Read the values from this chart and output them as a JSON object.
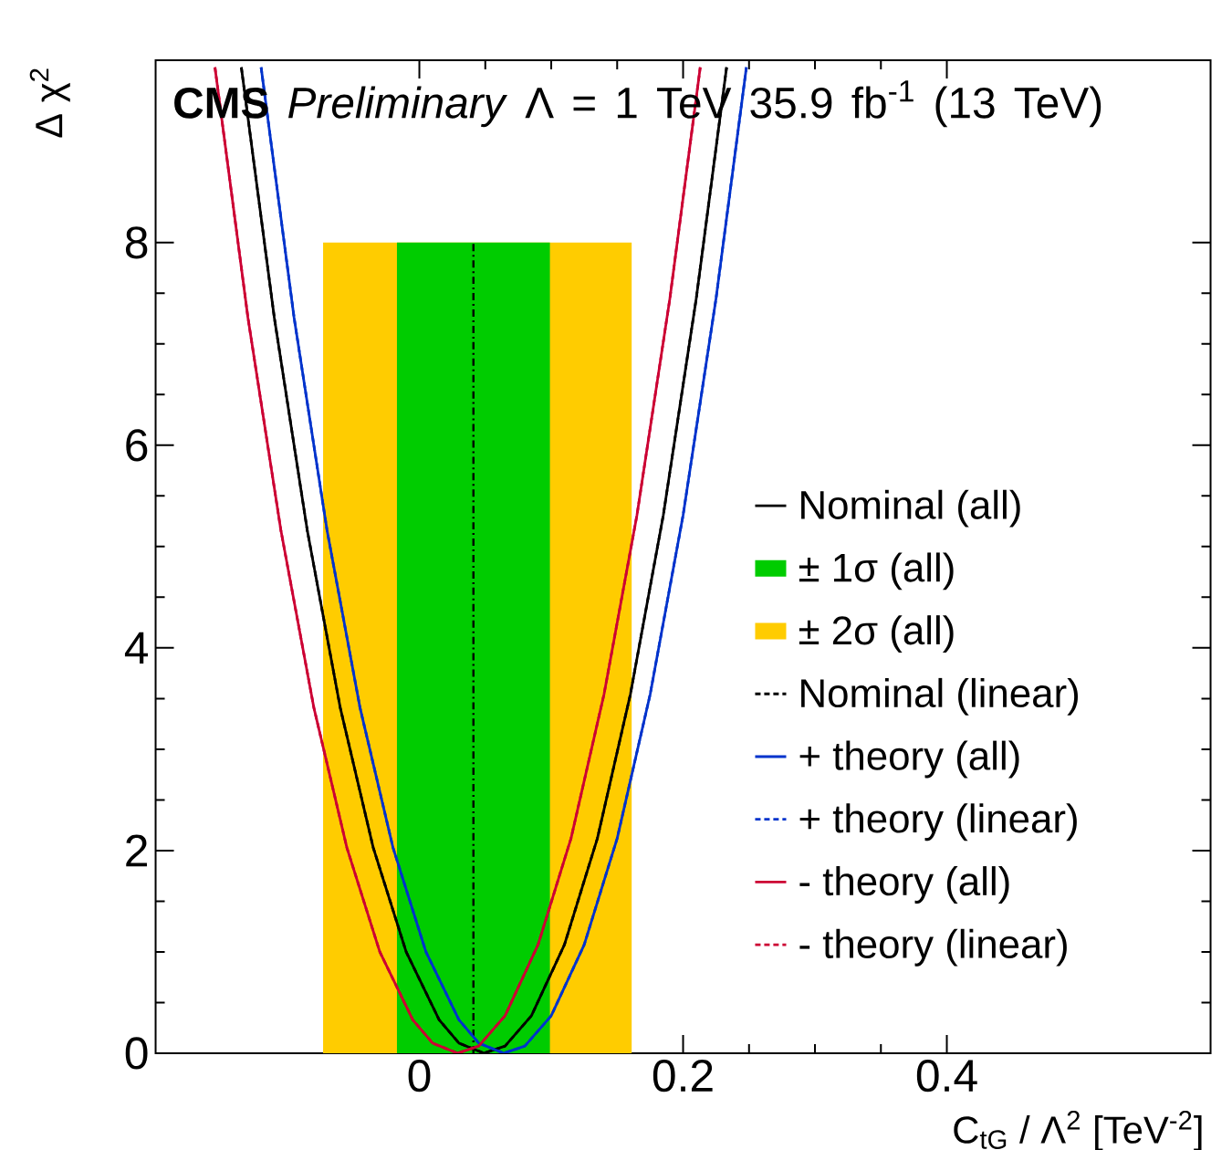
{
  "chart_data": {
    "type": "line",
    "title": "**CMS** *Preliminary*   Λ = 1 TeV  35.9 fb$^{-1}$ (13 TeV)",
    "xlabel": "C$_{tG}$ / Λ$^{2}$ [TeV$^{-2}$]",
    "ylabel": "Δ χ$^{2}$",
    "xlim": [
      -0.2,
      0.6
    ],
    "ylim": [
      0,
      9.8
    ],
    "xticks": [
      0,
      0.2,
      0.4
    ],
    "yticks": [
      0,
      2,
      4,
      6,
      8
    ],
    "grid": false,
    "legend": "right",
    "line_style": "solid",
    "marker": "none",
    "ref_lines": [
      {
        "axis": "x",
        "value": 0.041,
        "line_style": "dashdot",
        "color": "#000000"
      }
    ],
    "series": [
      {
        "name": "Nominal (all)",
        "color": "#000000",
        "x": [
          -0.135,
          -0.11,
          -0.085,
          -0.06,
          -0.035,
          -0.01,
          0.015,
          0.03,
          0.049,
          0.065,
          0.085,
          0.11,
          0.135,
          0.16,
          0.185,
          0.21,
          0.233
        ],
        "values": [
          9.73,
          7.26,
          5.16,
          3.41,
          2.03,
          1.0,
          0.33,
          0.1,
          0,
          0.07,
          0.37,
          1.07,
          2.12,
          3.54,
          5.31,
          7.45,
          9.73
        ]
      },
      {
        "name": "± 1σ (all)",
        "type": "area",
        "color": "#00cc00",
        "x": [
          -0.017,
          0.099
        ],
        "values": [
          8,
          8
        ]
      },
      {
        "name": "± 2σ (all)",
        "type": "area",
        "color": "#ffcc00",
        "x": [
          -0.073,
          0.161
        ],
        "values": [
          8,
          8
        ]
      },
      {
        "name": "Nominal (linear)",
        "color": "#000000",
        "line_style": "dashed",
        "x": [
          -0.135,
          -0.11,
          -0.085,
          -0.06,
          -0.035,
          -0.01,
          0.015,
          0.03,
          0.049,
          0.065,
          0.085,
          0.11,
          0.135,
          0.16,
          0.185,
          0.21,
          0.233
        ],
        "values": [
          9.73,
          7.26,
          5.16,
          3.41,
          2.03,
          1.0,
          0.33,
          0.1,
          0,
          0.07,
          0.37,
          1.07,
          2.12,
          3.54,
          5.31,
          7.45,
          9.73
        ]
      },
      {
        "name": "+ theory (all)",
        "color": "#0033cc",
        "x": [
          -0.12,
          -0.095,
          -0.07,
          -0.045,
          -0.02,
          0.005,
          0.03,
          0.045,
          0.064,
          0.08,
          0.1,
          0.125,
          0.15,
          0.175,
          0.2,
          0.225,
          0.248
        ],
        "values": [
          9.73,
          7.26,
          5.16,
          3.41,
          2.03,
          1.0,
          0.33,
          0.1,
          0,
          0.07,
          0.37,
          1.07,
          2.12,
          3.54,
          5.31,
          7.45,
          9.73
        ]
      },
      {
        "name": "+ theory (linear)",
        "color": "#0033cc",
        "line_style": "dashed",
        "x": [
          -0.12,
          -0.095,
          -0.07,
          -0.045,
          -0.02,
          0.005,
          0.03,
          0.045,
          0.064,
          0.08,
          0.1,
          0.125,
          0.15,
          0.175,
          0.2,
          0.225,
          0.248
        ],
        "values": [
          9.73,
          7.26,
          5.16,
          3.41,
          2.03,
          1.0,
          0.33,
          0.1,
          0,
          0.07,
          0.37,
          1.07,
          2.12,
          3.54,
          5.31,
          7.45,
          9.73
        ]
      },
      {
        "name": "- theory (all)",
        "color": "#cc0033",
        "x": [
          -0.155,
          -0.13,
          -0.105,
          -0.08,
          -0.055,
          -0.03,
          -0.005,
          0.01,
          0.029,
          0.045,
          0.065,
          0.09,
          0.115,
          0.14,
          0.165,
          0.19,
          0.213
        ],
        "values": [
          9.73,
          7.26,
          5.16,
          3.41,
          2.03,
          1.0,
          0.33,
          0.1,
          0,
          0.07,
          0.37,
          1.07,
          2.12,
          3.54,
          5.31,
          7.45,
          9.73
        ]
      },
      {
        "name": "- theory (linear)",
        "color": "#cc0033",
        "line_style": "dashed",
        "x": [
          -0.155,
          -0.13,
          -0.105,
          -0.08,
          -0.055,
          -0.03,
          -0.005,
          0.01,
          0.029,
          0.045,
          0.065,
          0.09,
          0.115,
          0.14,
          0.165,
          0.19,
          0.213
        ],
        "values": [
          9.73,
          7.26,
          5.16,
          3.41,
          2.03,
          1.0,
          0.33,
          0.1,
          0,
          0.07,
          0.37,
          1.07,
          2.12,
          3.54,
          5.31,
          7.45,
          9.73
        ]
      }
    ]
  }
}
